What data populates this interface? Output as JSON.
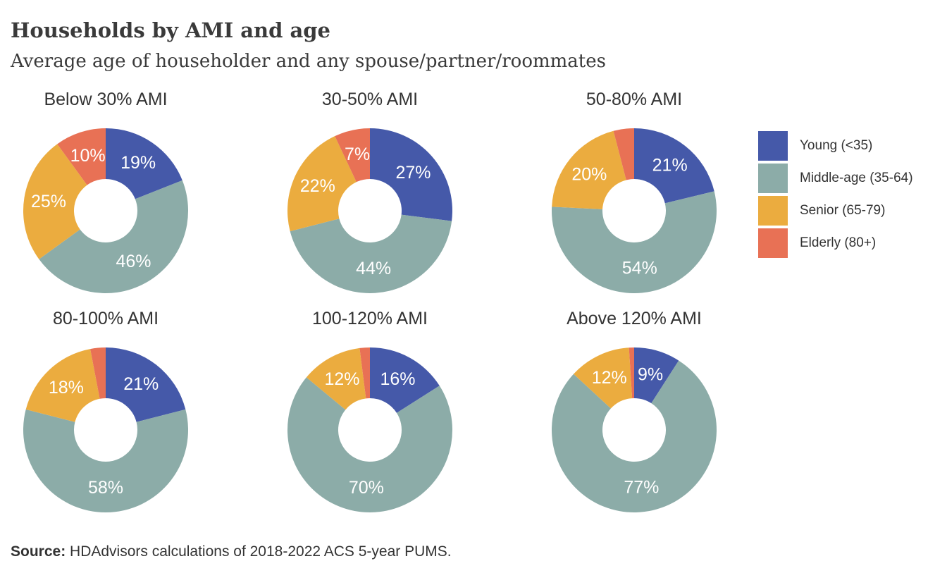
{
  "title": "Households by AMI and age",
  "subtitle": "Average age of householder and any spouse/partner/roommates",
  "source_label": "Source:",
  "source_text": "HDAdvisors  calculations of 2018-2022  ACS 5-year PUMS.",
  "legend": [
    {
      "label": "Young (<35)",
      "color": "#4559a9"
    },
    {
      "label": "Middle-age (35-64)",
      "color": "#8caca8"
    },
    {
      "label": "Senior (65-79)",
      "color": "#ebac3f"
    },
    {
      "label": "Elderly (80+)",
      "color": "#e87155"
    }
  ],
  "chart_data": [
    {
      "type": "pie",
      "title": "Below 30% AMI",
      "categories": [
        "Young (<35)",
        "Middle-age (35-64)",
        "Senior (65-79)",
        "Elderly (80+)"
      ],
      "values": [
        19,
        46,
        25,
        10
      ],
      "labels": [
        "19%",
        "46%",
        "25%",
        "10%"
      ]
    },
    {
      "type": "pie",
      "title": "30-50% AMI",
      "categories": [
        "Young (<35)",
        "Middle-age (35-64)",
        "Senior (65-79)",
        "Elderly (80+)"
      ],
      "values": [
        27,
        44,
        22,
        7
      ],
      "labels": [
        "27%",
        "44%",
        "22%",
        "7%"
      ]
    },
    {
      "type": "pie",
      "title": "50-80% AMI",
      "categories": [
        "Young (<35)",
        "Middle-age (35-64)",
        "Senior (65-79)",
        "Elderly (80+)"
      ],
      "values": [
        21,
        54,
        20,
        4
      ],
      "labels": [
        "21%",
        "54%",
        "20%",
        ""
      ]
    },
    {
      "type": "pie",
      "title": "80-100% AMI",
      "categories": [
        "Young (<35)",
        "Middle-age (35-64)",
        "Senior (65-79)",
        "Elderly (80+)"
      ],
      "values": [
        21,
        58,
        18,
        3
      ],
      "labels": [
        "21%",
        "58%",
        "18%",
        ""
      ]
    },
    {
      "type": "pie",
      "title": "100-120% AMI",
      "categories": [
        "Young (<35)",
        "Middle-age (35-64)",
        "Senior (65-79)",
        "Elderly (80+)"
      ],
      "values": [
        16,
        70,
        12,
        2
      ],
      "labels": [
        "16%",
        "70%",
        "12%",
        ""
      ]
    },
    {
      "type": "pie",
      "title": "Above 120% AMI",
      "categories": [
        "Young (<35)",
        "Middle-age (35-64)",
        "Senior (65-79)",
        "Elderly (80+)"
      ],
      "values": [
        9,
        77,
        12,
        1
      ],
      "labels": [
        "9%",
        "77%",
        "12%",
        ""
      ]
    }
  ]
}
